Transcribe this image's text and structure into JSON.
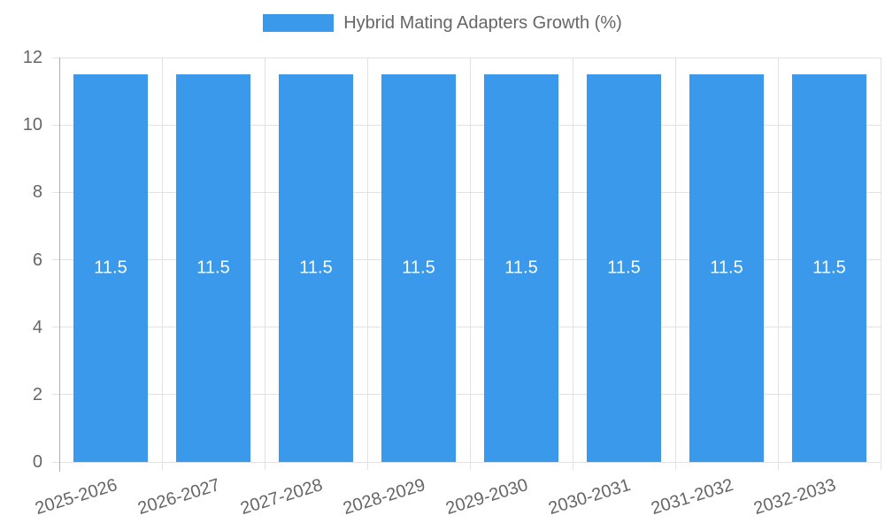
{
  "chart_data": {
    "type": "bar",
    "title": "Hybrid Mating Adapters Growth (%)",
    "categories": [
      "2025-2026",
      "2026-2027",
      "2027-2028",
      "2028-2029",
      "2029-2030",
      "2030-2031",
      "2031-2032",
      "2032-2033"
    ],
    "values": [
      11.5,
      11.5,
      11.5,
      11.5,
      11.5,
      11.5,
      11.5,
      11.5
    ],
    "bar_labels": [
      "11.5",
      "11.5",
      "11.5",
      "11.5",
      "11.5",
      "11.5",
      "11.5",
      "11.5"
    ],
    "ytick_labels": [
      "0",
      "2",
      "4",
      "6",
      "8",
      "10",
      "12"
    ],
    "yticks": [
      0,
      2,
      4,
      6,
      8,
      10,
      12
    ],
    "ylim": [
      0,
      12
    ],
    "xlabel": "",
    "ylabel": "",
    "legend_position": "top",
    "grid": true,
    "colors": {
      "bar": "#3B99EB",
      "grid": "#E2E2E2",
      "axis": "#B0B0B0",
      "text": "#666666",
      "bar_value_text": "#FFFFFF",
      "background": "#FFFFFF"
    }
  }
}
